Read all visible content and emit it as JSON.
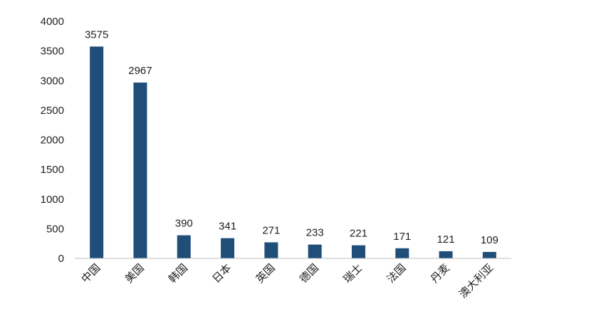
{
  "chart_data": {
    "type": "bar",
    "categories": [
      "中国",
      "美国",
      "韩国",
      "日本",
      "英国",
      "德国",
      "瑞士",
      "法国",
      "丹麦",
      "澳大利亚"
    ],
    "values": [
      3575,
      2967,
      390,
      341,
      271,
      233,
      221,
      171,
      121,
      109
    ],
    "title": "",
    "xlabel": "",
    "ylabel": "",
    "ylim": [
      0,
      4000
    ],
    "yticks": [
      0,
      500,
      1000,
      1500,
      2000,
      2500,
      3000,
      3500,
      4000
    ],
    "grid": false,
    "legend": "none",
    "bar_color": "#1f4e79",
    "data_labels": true
  }
}
